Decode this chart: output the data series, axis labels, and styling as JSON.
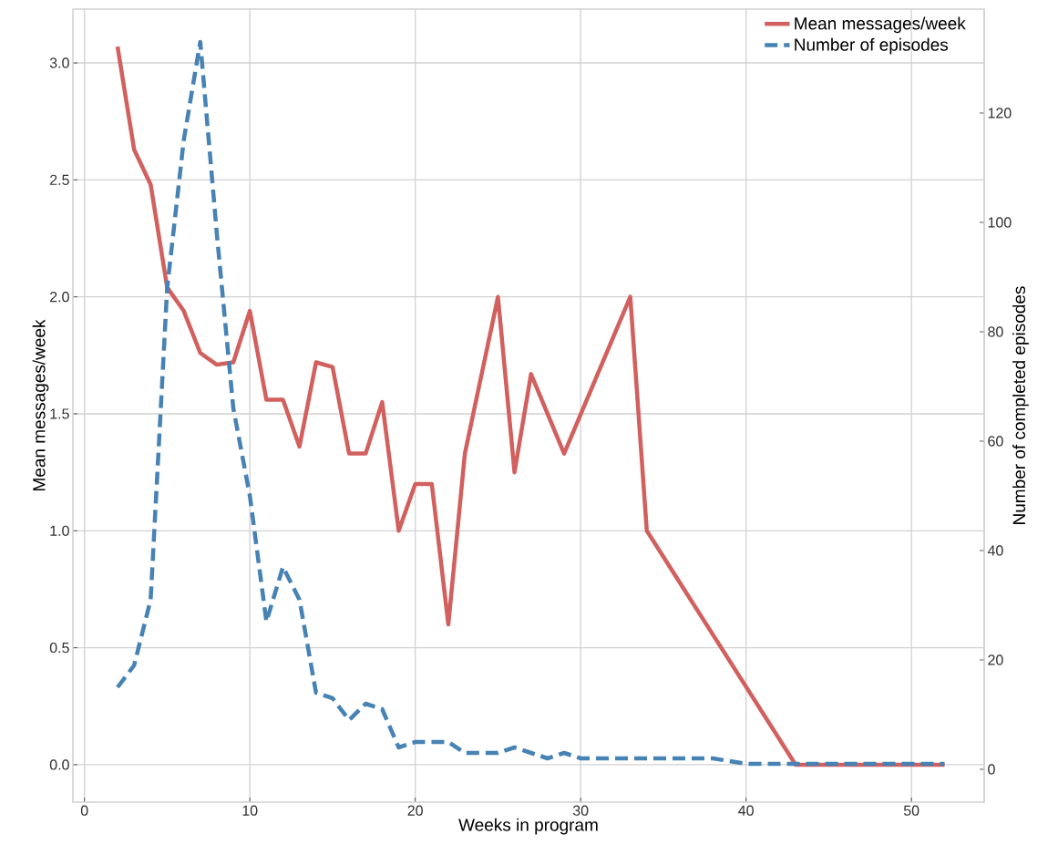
{
  "chart_data": {
    "type": "line",
    "xlabel": "Weeks in program",
    "ylabel": "Mean messages/week",
    "y2label": "Number of completed episodes",
    "xlim": [
      -0.7,
      54.4
    ],
    "ylim": [
      -0.16,
      3.23
    ],
    "y2lim": [
      -6,
      139
    ],
    "xticks": [
      0,
      10,
      20,
      30,
      40,
      50
    ],
    "yticks": [
      {
        "value": 0,
        "label": "0.0"
      },
      {
        "value": 0.5,
        "label": "0.5"
      },
      {
        "value": 1,
        "label": "1.0"
      },
      {
        "value": 1.5,
        "label": "1.5"
      },
      {
        "value": 2,
        "label": "2.0"
      },
      {
        "value": 2.5,
        "label": "2.5"
      },
      {
        "value": 3,
        "label": "3.0"
      }
    ],
    "y2ticks": [
      0,
      20,
      40,
      60,
      80,
      100,
      120
    ],
    "grid": true,
    "legend": "top right",
    "series": [
      {
        "name": "Mean messages/week",
        "color": "#d1605e",
        "line_style": "solid",
        "axis": "y",
        "x": [
          2,
          3,
          4,
          5,
          6,
          7,
          8,
          9,
          10,
          11,
          12,
          13,
          14,
          15,
          16,
          17,
          18,
          19,
          20,
          21,
          22,
          23,
          25,
          26,
          27,
          29,
          33,
          34,
          43,
          44,
          45,
          46,
          47,
          48,
          49,
          50,
          51,
          52
        ],
        "values": [
          3.07,
          2.63,
          2.48,
          2.04,
          1.94,
          1.76,
          1.71,
          1.72,
          1.94,
          1.56,
          1.56,
          1.36,
          1.72,
          1.7,
          1.33,
          1.33,
          1.55,
          1.0,
          1.2,
          1.2,
          0.6,
          1.33,
          2.0,
          1.25,
          1.67,
          1.33,
          2.0,
          1.0,
          0,
          0,
          0,
          0,
          0,
          0,
          0,
          0,
          0,
          0
        ]
      },
      {
        "name": "Number of episodes",
        "color": "#4682b4",
        "line_style": "dashed",
        "axis": "y2",
        "x": [
          2,
          3,
          4,
          5,
          6,
          7,
          8,
          9,
          10,
          11,
          12,
          13,
          14,
          15,
          16,
          17,
          18,
          19,
          20,
          21,
          22,
          23,
          24,
          25,
          26,
          27,
          28,
          29,
          30,
          31,
          32,
          33,
          34,
          36,
          38,
          40,
          42,
          43,
          44,
          45,
          46,
          47,
          48,
          49,
          50,
          51,
          52
        ],
        "values": [
          15,
          19,
          31,
          88,
          115,
          133,
          98,
          66,
          50,
          27,
          37,
          31,
          14,
          13,
          9,
          12,
          11,
          4,
          5,
          5,
          5,
          3,
          3,
          3,
          4,
          3,
          2,
          3,
          2,
          2,
          2,
          2,
          2,
          2,
          2,
          1,
          1,
          1,
          1,
          1,
          1,
          1,
          1,
          1,
          1,
          1,
          1
        ]
      }
    ]
  }
}
